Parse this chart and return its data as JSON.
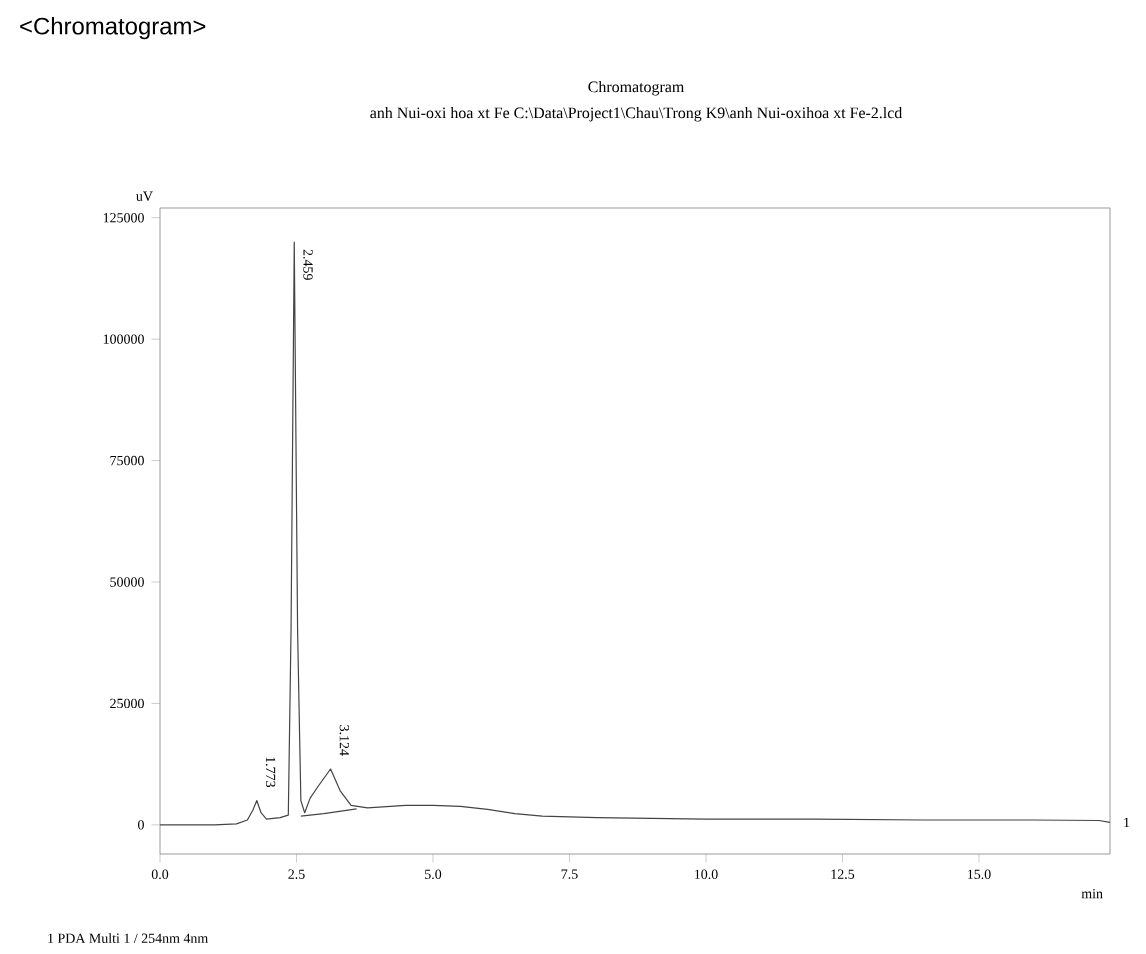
{
  "chart_data": {
    "type": "line",
    "title": "<Chromatogram>",
    "subtitle": "Chromatogram",
    "xlabel": "min",
    "ylabel": "uV",
    "xlim": [
      0,
      17.4
    ],
    "ylim": [
      -6000,
      127000
    ],
    "xticks": [
      {
        "value": 0,
        "label": "0.0"
      },
      2.5,
      {
        "value": 5,
        "label": "5.0"
      },
      7.5,
      {
        "value": 10,
        "label": "10.0"
      },
      12.5,
      {
        "value": 15,
        "label": "15.0"
      }
    ],
    "yticks": [
      0,
      25000,
      50000,
      75000,
      100000,
      125000
    ],
    "grid": false,
    "marker": "none",
    "line_style": "solid",
    "series": [
      {
        "color": "#444444",
        "x": [
          0,
          1.0,
          1.4,
          1.6,
          1.7,
          1.773,
          1.85,
          1.95,
          2.2,
          2.35,
          2.4,
          2.459,
          2.52,
          2.58,
          2.65,
          2.75,
          2.9,
          3.124,
          3.3,
          3.5,
          3.8,
          4.5,
          5.0,
          5.5,
          6.0,
          6.5,
          7.0,
          8.0,
          10,
          12,
          14,
          16,
          17.2,
          17.4
        ],
        "values": [
          0,
          0,
          200,
          1000,
          3000,
          5000,
          2500,
          1200,
          1500,
          2000,
          40000,
          120000,
          40000,
          5000,
          2500,
          5500,
          8000,
          11500,
          7000,
          4000,
          3500,
          4000,
          4000,
          3800,
          3200,
          2300,
          1800,
          1500,
          1200,
          1200,
          1000,
          1000,
          900,
          500
        ]
      },
      {
        "color": "#444444",
        "x": [
          2.58,
          3.0,
          3.6
        ],
        "values": [
          1800,
          2300,
          3300
        ]
      }
    ],
    "annotations": [
      "anh Nui-oxi hoa xt Fe C:\\Data\\Project1\\Chau\\Trong K9\\anh Nui-oxihoa xt Fe-2.lcd",
      "1  PDA Multi 1 / 254nm 4nm",
      {
        "text": "1",
        "x": 17.4,
        "y": 500
      },
      {
        "text": "1.773",
        "x": 1.773,
        "y": 5000
      },
      {
        "text": "2.459",
        "x": 2.459,
        "y": 120000
      },
      {
        "text": "3.124",
        "x": 3.124,
        "y": 11500
      }
    ]
  }
}
